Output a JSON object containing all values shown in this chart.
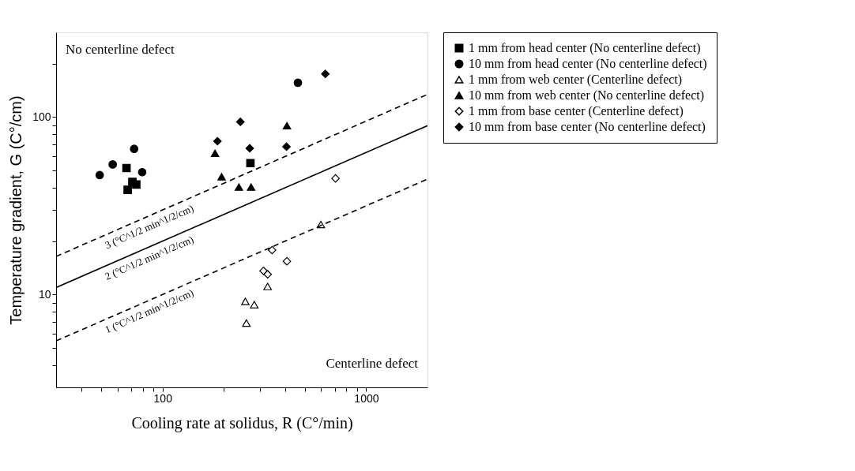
{
  "chart_data": {
    "type": "scatter",
    "xlabel": "Cooling rate at solidus, R (C°/min)",
    "ylabel": "Temperature gradient, G (C°/cm)",
    "xlim": [
      30,
      2000
    ],
    "xticks": [
      {
        "value": 40,
        "label": null
      },
      {
        "value": 50,
        "label": null
      },
      {
        "value": 60,
        "label": null
      },
      {
        "value": 70,
        "label": null
      },
      {
        "value": 80,
        "label": null
      },
      {
        "value": 90,
        "label": null
      },
      100,
      {
        "value": 200,
        "label": null
      },
      {
        "value": 300,
        "label": null
      },
      {
        "value": 400,
        "label": null
      },
      {
        "value": 500,
        "label": null
      },
      {
        "value": 600,
        "label": null
      },
      {
        "value": 700,
        "label": null
      },
      {
        "value": 800,
        "label": null
      },
      {
        "value": 900,
        "label": null
      },
      1000
    ],
    "ylim": [
      3,
      300
    ],
    "yticks": [
      {
        "value": 4,
        "label": null
      },
      {
        "value": 5,
        "label": null
      },
      {
        "value": 6,
        "label": null
      },
      {
        "value": 7,
        "label": null
      },
      {
        "value": 8,
        "label": null
      },
      {
        "value": 9,
        "label": null
      },
      10,
      {
        "value": 20,
        "label": null
      },
      {
        "value": 30,
        "label": null
      },
      {
        "value": 40,
        "label": null
      },
      {
        "value": 50,
        "label": null
      },
      {
        "value": 60,
        "label": null
      },
      {
        "value": 70,
        "label": null
      },
      {
        "value": 80,
        "label": null
      },
      {
        "value": 90,
        "label": null
      },
      100,
      {
        "value": 200,
        "label": null
      }
    ],
    "log": "xy",
    "grid": false,
    "legend": "top right",
    "series": [
      {
        "name": "1 mm from head center (No centerline defect)",
        "color": "#000000",
        "marker": "square",
        "x": [
          66.5,
          67.4,
          71.1,
          74.3,
          270
        ],
        "values": [
          51.6,
          38.9,
          43.1,
          41.7,
          55
        ]
      },
      {
        "name": "10 mm from head center (No centerline defect)",
        "color": "#000000",
        "marker": "circle",
        "x": [
          49.1,
          56.9,
          72.5,
          79.4,
          462
        ],
        "values": [
          47.1,
          54.1,
          66.2,
          48.9,
          156
        ]
      },
      {
        "name": "1 mm from web center (Centerline defect)",
        "color": "#ffffff",
        "marker": "triangle",
        "x": [
          599,
          328,
          255,
          282,
          258
        ],
        "values": [
          24.8,
          11.1,
          9.15,
          8.77,
          6.91
        ]
      },
      {
        "name": "10 mm from web center (No centerline defect)",
        "color": "#000000",
        "marker": "triangle",
        "x": [
          181,
          195,
          237,
          272,
          408
        ],
        "values": [
          62.5,
          46.1,
          40.3,
          40.3,
          89.3
        ]
      },
      {
        "name": "1 mm from base center (Centerline defect)",
        "color": "#ffffff",
        "marker": "diamond",
        "x": [
          707,
          345,
          408,
          313,
          328
        ],
        "values": [
          45.1,
          17.8,
          15.4,
          13.6,
          13.0
        ]
      },
      {
        "name": "10 mm from base center (No centerline defect)",
        "color": "#000000",
        "marker": "diamond",
        "x": [
          186,
          241,
          268,
          406,
          630
        ],
        "values": [
          73.1,
          94,
          66.7,
          68.1,
          175
        ]
      },
      {
        "type": "line",
        "color": "#000000",
        "line_style": "dashed",
        "x": [
          30,
          2000
        ],
        "values": [
          16.4,
          134.2
        ]
      },
      {
        "type": "line",
        "color": "#000000",
        "line_style": "solid",
        "x": [
          30,
          2000
        ],
        "values": [
          10.95,
          89.4
        ]
      },
      {
        "type": "line",
        "color": "#000000",
        "line_style": "dashed",
        "x": [
          30,
          2000
        ],
        "values": [
          5.48,
          44.7
        ]
      }
    ],
    "annotations": [
      "No centerline defect",
      "Centerline defect",
      "3 (°C^1/2 min^1/2/cm)",
      "2 (°C^1/2 min^1/2/cm)",
      "1 (°C^1/2 min^1/2/cm)"
    ]
  }
}
